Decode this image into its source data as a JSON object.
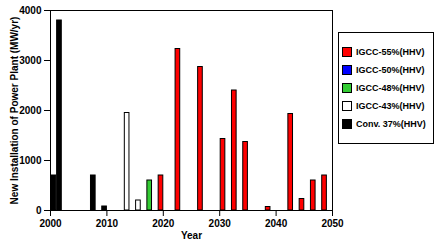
{
  "chart_data": {
    "type": "bar",
    "x_label": "Year",
    "y_label": "New Installation of Power Plant (MW/yr)",
    "x": [
      2000,
      2001,
      2007,
      2009,
      2013,
      2015,
      2017,
      2019,
      2022,
      2026,
      2030,
      2032,
      2034,
      2038,
      2042,
      2044,
      2046,
      2048
    ],
    "series": [
      {
        "name": "IGCC-55%(HHV)",
        "color": "#ff0000",
        "values": [
          null,
          null,
          null,
          null,
          null,
          null,
          null,
          700,
          3230,
          2870,
          1430,
          2400,
          1370,
          70,
          1930,
          230,
          600,
          700
        ]
      },
      {
        "name": "IGCC-50%(HHV)",
        "color": "#0000ff",
        "values": [
          null,
          null,
          null,
          null,
          null,
          null,
          null,
          null,
          null,
          null,
          null,
          null,
          null,
          null,
          null,
          null,
          null,
          null
        ]
      },
      {
        "name": "IGCC-48%(HHV)",
        "color": "#33cc33",
        "values": [
          null,
          null,
          null,
          null,
          null,
          null,
          600,
          null,
          null,
          null,
          null,
          null,
          null,
          null,
          null,
          null,
          null,
          null
        ]
      },
      {
        "name": "IGCC-43%(HHV)",
        "color": "#ffffff",
        "values": [
          null,
          null,
          null,
          null,
          1950,
          200,
          null,
          null,
          null,
          null,
          null,
          null,
          null,
          null,
          null,
          null,
          null,
          null
        ]
      },
      {
        "name": "Conv. 37%(HHV)",
        "color": "#000000",
        "values": [
          700,
          3800,
          700,
          80,
          null,
          null,
          null,
          null,
          null,
          null,
          null,
          null,
          null,
          null,
          null,
          null,
          null,
          null
        ]
      }
    ],
    "xlim": [
      2000,
      2050
    ],
    "xticks": [
      2000,
      2010,
      2020,
      2030,
      2040,
      2050
    ],
    "ylim": [
      0,
      4000
    ],
    "yticks": [
      0,
      1000,
      2000,
      3000,
      4000
    ],
    "legend": "right"
  }
}
